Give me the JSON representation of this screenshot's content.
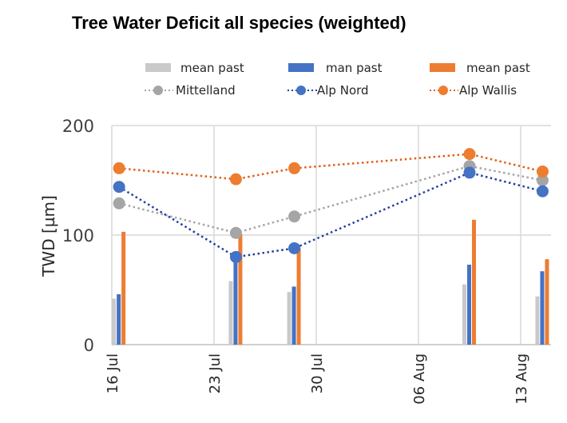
{
  "chart_data": {
    "type": "bar+line",
    "title": "Tree Water Deficit all species (weighted)",
    "ylabel": "TWD [µm]",
    "xlabel": "",
    "ylim": [
      0,
      200
    ],
    "yticks": [
      "0",
      "100",
      "200"
    ],
    "ytick_values": [
      0,
      100,
      200
    ],
    "xticks": [
      "16 Jul",
      "23 Jul",
      "30 Jul",
      "06 Aug",
      "13 Aug"
    ],
    "xtick_days": [
      0,
      7,
      14,
      21,
      28
    ],
    "x_days_from_16_Jul": [
      0.5,
      8.5,
      12.5,
      24.5,
      29.5
    ],
    "grid": true,
    "legend_position": "top",
    "bars": [
      {
        "name": "mean past",
        "color": "#c9c9c9",
        "values": [
          42,
          58,
          48,
          55,
          44
        ]
      },
      {
        "name": "man past",
        "color": "#4472c4",
        "values": [
          46,
          80,
          53,
          73,
          67
        ]
      },
      {
        "name": "mean past",
        "color": "#ed7d31",
        "values": [
          103,
          101,
          88,
          114,
          78
        ]
      }
    ],
    "series": [
      {
        "name": "Mittelland",
        "color": "#a5a5a5",
        "values": [
          129,
          102,
          117,
          163,
          150
        ]
      },
      {
        "name": "Alp Nord",
        "color": "#4472c4",
        "line_color": "#203ea0",
        "values": [
          144,
          80,
          88,
          157,
          140
        ]
      },
      {
        "name": "Alp Wallis",
        "color": "#ed7d31",
        "line_color": "#e0601a",
        "values": [
          161,
          151,
          161,
          174,
          158
        ]
      }
    ]
  }
}
